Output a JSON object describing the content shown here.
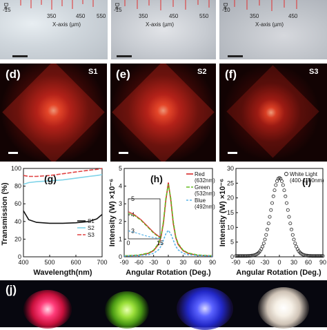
{
  "micrographs": [
    {
      "side_label": "De",
      "ticks": [
        "-15",
        "350",
        "450",
        "550"
      ],
      "xaxis_label": "X-axis (µm)"
    },
    {
      "side_label": "De",
      "ticks": [
        "-15",
        "350",
        "450",
        "550"
      ],
      "xaxis_label": "X-axis (µm)"
    },
    {
      "side_label": "De",
      "ticks": [
        "-10",
        "350",
        "450"
      ],
      "xaxis_label": "X-axis (µm)"
    }
  ],
  "fft_panels": [
    {
      "label": "(d)",
      "sample": "S1"
    },
    {
      "label": "(e)",
      "sample": "S2"
    },
    {
      "label": "(f)",
      "sample": "S3"
    }
  ],
  "colors": {
    "red": "#d62828",
    "green": "#66bb22",
    "blue": "#5bb4e8",
    "s1": "#111111",
    "s2": "#7fd3e8",
    "s3": "#e04040",
    "white_light": "#222222"
  },
  "chart_data": [
    {
      "type": "line",
      "panel_label": "(g)",
      "xlabel": "Wavelength(nm)",
      "ylabel": "Transmission (%)",
      "xlim": [
        400,
        700
      ],
      "ylim": [
        0,
        100
      ],
      "xticks": [
        "400",
        "500",
        "600",
        "700"
      ],
      "yticks": [
        "0",
        "20",
        "40",
        "60",
        "80",
        "100"
      ],
      "legend_position": "right",
      "x": [
        400,
        420,
        450,
        500,
        550,
        600,
        650,
        680,
        700
      ],
      "series": [
        {
          "name": "S1",
          "values": [
            52,
            42,
            39,
            38,
            38,
            38.5,
            40,
            43,
            48
          ]
        },
        {
          "name": "S2",
          "values": [
            82,
            84,
            85,
            86,
            87,
            89,
            91,
            92,
            93
          ]
        },
        {
          "name": "S3",
          "values": [
            92,
            91,
            91,
            92,
            94,
            96,
            98,
            99,
            100
          ]
        }
      ]
    },
    {
      "type": "line",
      "panel_label": "(h)",
      "xlabel": "Angular Rotation (Deg.)",
      "ylabel": "Intensity (W) ×10⁻⁶",
      "xlim": [
        -90,
        90
      ],
      "ylim": [
        0,
        5
      ],
      "xticks": [
        "-90",
        "-60",
        "-30",
        "0",
        "30",
        "60",
        "90"
      ],
      "yticks": [
        "0",
        "1",
        "2",
        "3",
        "4",
        "5"
      ],
      "legend_position": "top-right",
      "x": [
        -90,
        -60,
        -40,
        -30,
        -20,
        -15,
        -10,
        -5,
        0,
        5,
        10,
        15,
        20,
        30,
        40,
        60,
        90
      ],
      "series": [
        {
          "name": "Red",
          "sub": "(632nm)",
          "values": [
            0.05,
            0.08,
            0.2,
            0.35,
            0.7,
            1.1,
            1.9,
            3.2,
            4.2,
            3.2,
            1.9,
            1.1,
            0.7,
            0.35,
            0.2,
            0.08,
            0.05
          ]
        },
        {
          "name": "Green",
          "sub": "(532nm)",
          "values": [
            0.06,
            0.1,
            0.22,
            0.38,
            0.75,
            1.15,
            2.0,
            3.3,
            4.1,
            3.3,
            2.0,
            1.15,
            0.75,
            0.38,
            0.22,
            0.1,
            0.06
          ]
        },
        {
          "name": "Blue",
          "sub": "(492nm)",
          "values": [
            0.04,
            0.07,
            0.12,
            0.2,
            0.4,
            0.6,
            0.95,
            1.3,
            1.5,
            1.3,
            0.95,
            0.6,
            0.4,
            0.2,
            0.12,
            0.07,
            0.04
          ]
        }
      ],
      "inset": {
        "xticks": [
          "0",
          "15"
        ],
        "yticks": [
          "3",
          "4",
          "5"
        ],
        "xlim": [
          0,
          15
        ],
        "ylim": [
          2.5,
          5
        ]
      }
    },
    {
      "type": "scatter",
      "panel_label": "(i)",
      "xlabel": "Angular Rotation (Deg.)",
      "ylabel": "Intensity (W) ×10⁻⁶",
      "xlim": [
        -90,
        90
      ],
      "ylim": [
        0,
        30
      ],
      "xticks": [
        "-90",
        "-60",
        "-30",
        "0",
        "30",
        "60",
        "90"
      ],
      "yticks": [
        "0",
        "5",
        "10",
        "15",
        "20",
        "25",
        "30"
      ],
      "legend_position": "top-right",
      "series": [
        {
          "name": "White Light",
          "sub": "(400-1100nm)",
          "peak": 26.5,
          "center": 0,
          "sigma": 17,
          "x_start": -90,
          "x_end": 90,
          "x_step": 2.5
        }
      ]
    }
  ],
  "panel_j": {
    "label": "(j)",
    "spots": [
      "red",
      "green",
      "blue",
      "white"
    ]
  }
}
